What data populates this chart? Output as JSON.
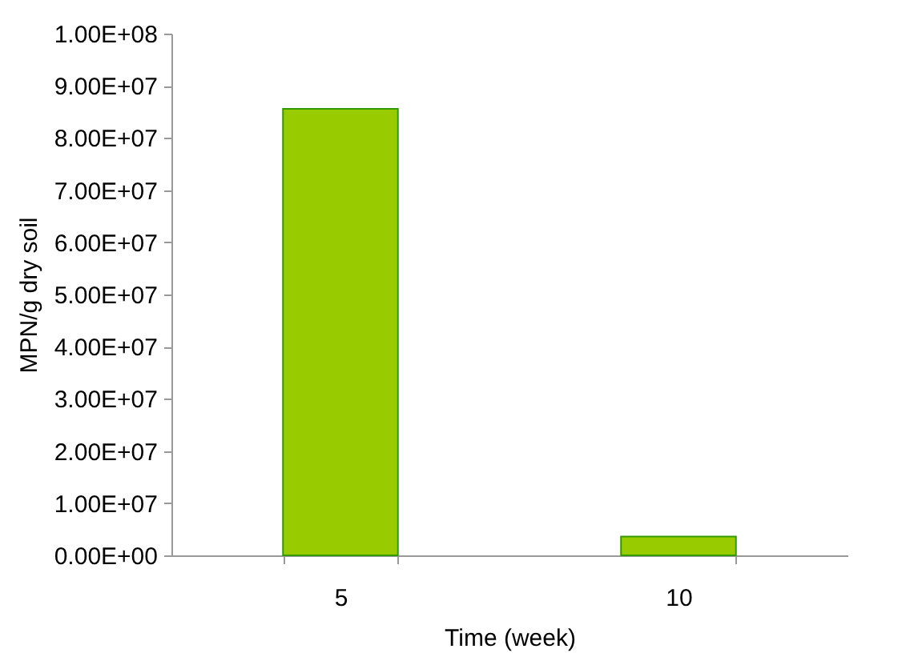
{
  "chart_data": {
    "type": "bar",
    "xlabel": "Time (week)",
    "ylabel": "MPN/g dry soil",
    "categories": [
      "5",
      "10"
    ],
    "values": [
      85600000,
      3600000
    ],
    "color": "#99cc00",
    "ylim": [
      0,
      100000000
    ],
    "yticks": [
      {
        "value": 0,
        "label": "0.00E+00"
      },
      {
        "value": 10000000,
        "label": "1.00E+07"
      },
      {
        "value": 20000000,
        "label": "2.00E+07"
      },
      {
        "value": 30000000,
        "label": "3.00E+07"
      },
      {
        "value": 40000000,
        "label": "4.00E+07"
      },
      {
        "value": 50000000,
        "label": "5.00E+07"
      },
      {
        "value": 60000000,
        "label": "6.00E+07"
      },
      {
        "value": 70000000,
        "label": "7.00E+07"
      },
      {
        "value": 80000000,
        "label": "8.00E+07"
      },
      {
        "value": 90000000,
        "label": "9.00E+07"
      },
      {
        "value": 100000000,
        "label": "1.00E+08"
      }
    ],
    "grid": false
  }
}
